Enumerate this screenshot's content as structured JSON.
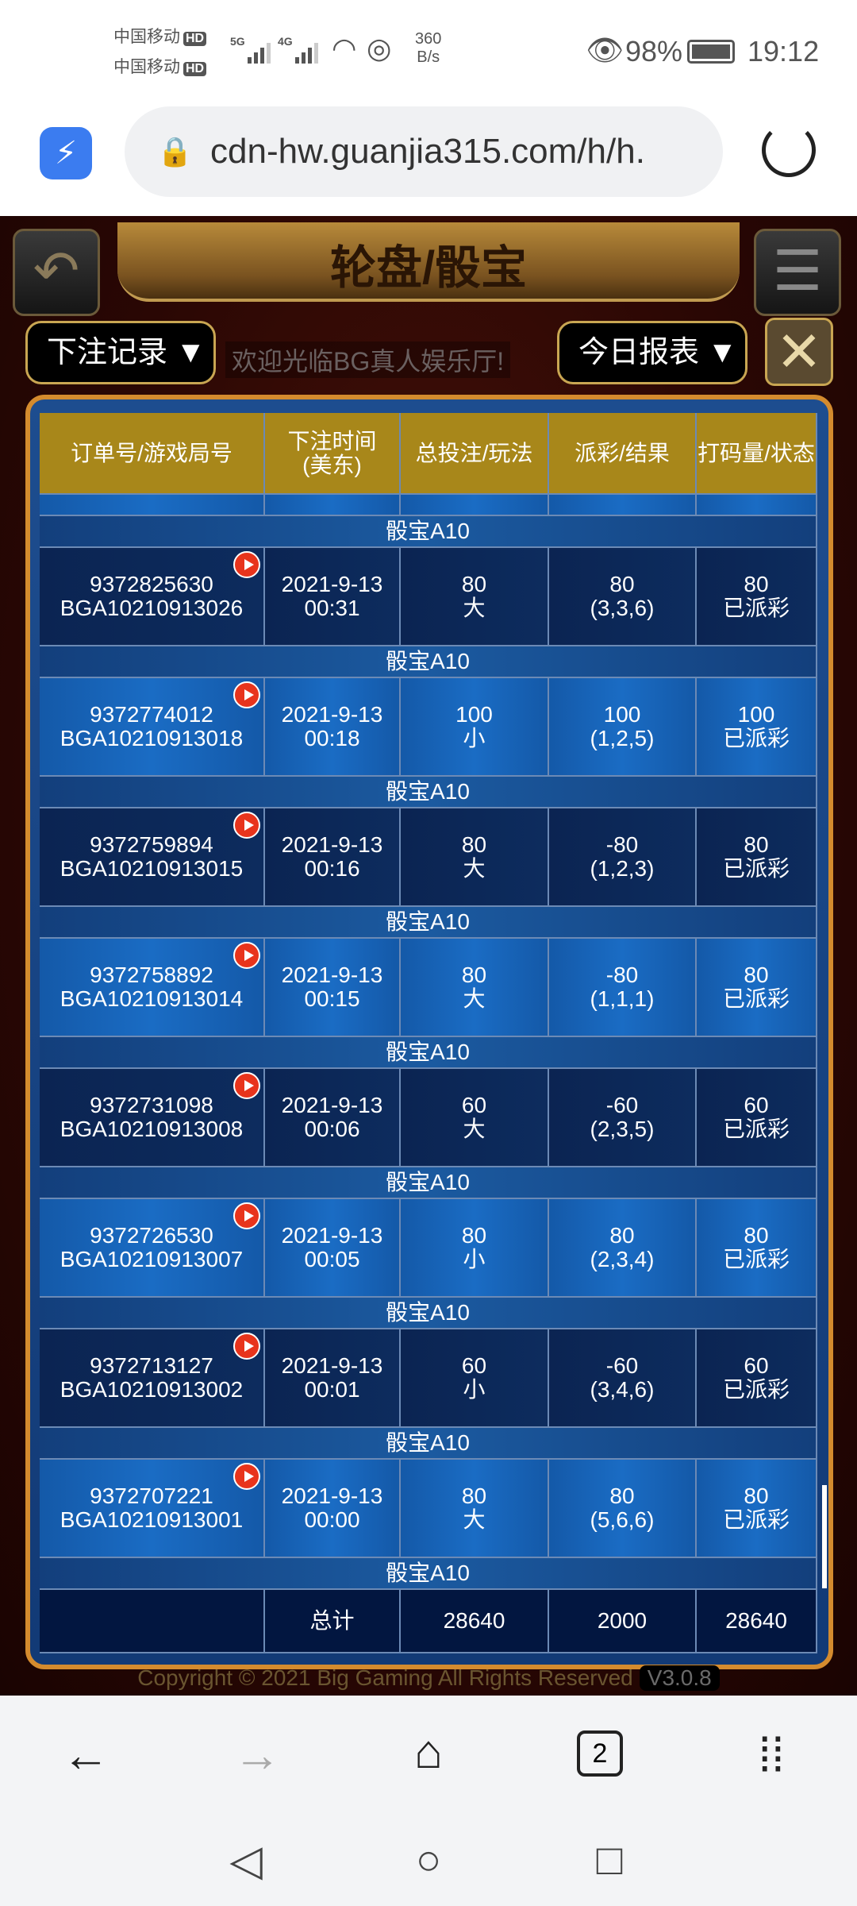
{
  "status": {
    "carrier1": "中国移动",
    "carrier2": "中国移动",
    "hd": "HD",
    "net1": "5G",
    "net2": "4G",
    "speed_value": "360",
    "speed_unit": "B/s",
    "battery": "98%",
    "time": "19:12"
  },
  "browser": {
    "url": "cdn-hw.guanjia315.com/h/h.",
    "page_count": "2"
  },
  "game": {
    "title": "轮盘/骰宝",
    "record_dropdown": "下注记录 ▼",
    "report_dropdown": "今日报表 ▼",
    "marquee": "欢迎光临BG真人娱乐厅!",
    "copyright": "Copyright © 2021 Big Gaming All Rights Reserved",
    "version": "V3.0.8"
  },
  "table": {
    "headers": [
      "订单号/游戏局号",
      "下注时间\n(美东)",
      "总投注/玩法",
      "派彩/结果",
      "打码量/状态"
    ],
    "rows": [
      {
        "group": "骰宝A10",
        "order": "9372825630",
        "round": "BGA10210913026",
        "date": "2021-9-13",
        "time": "00:31",
        "bet": "80",
        "play": "大",
        "payout": "80",
        "result": "(3,3,6)",
        "valid": "80",
        "status": "已派彩"
      },
      {
        "group": "骰宝A10",
        "order": "9372774012",
        "round": "BGA10210913018",
        "date": "2021-9-13",
        "time": "00:18",
        "bet": "100",
        "play": "小",
        "payout": "100",
        "result": "(1,2,5)",
        "valid": "100",
        "status": "已派彩"
      },
      {
        "group": "骰宝A10",
        "order": "9372759894",
        "round": "BGA10210913015",
        "date": "2021-9-13",
        "time": "00:16",
        "bet": "80",
        "play": "大",
        "payout": "-80",
        "result": "(1,2,3)",
        "valid": "80",
        "status": "已派彩"
      },
      {
        "group": "骰宝A10",
        "order": "9372758892",
        "round": "BGA10210913014",
        "date": "2021-9-13",
        "time": "00:15",
        "bet": "80",
        "play": "大",
        "payout": "-80",
        "result": "(1,1,1)",
        "valid": "80",
        "status": "已派彩"
      },
      {
        "group": "骰宝A10",
        "order": "9372731098",
        "round": "BGA10210913008",
        "date": "2021-9-13",
        "time": "00:06",
        "bet": "60",
        "play": "大",
        "payout": "-60",
        "result": "(2,3,5)",
        "valid": "60",
        "status": "已派彩"
      },
      {
        "group": "骰宝A10",
        "order": "9372726530",
        "round": "BGA10210913007",
        "date": "2021-9-13",
        "time": "00:05",
        "bet": "80",
        "play": "小",
        "payout": "80",
        "result": "(2,3,4)",
        "valid": "80",
        "status": "已派彩"
      },
      {
        "group": "骰宝A10",
        "order": "9372713127",
        "round": "BGA10210913002",
        "date": "2021-9-13",
        "time": "00:01",
        "bet": "60",
        "play": "小",
        "payout": "-60",
        "result": "(3,4,6)",
        "valid": "60",
        "status": "已派彩"
      },
      {
        "group": "骰宝A10",
        "order": "9372707221",
        "round": "BGA10210913001",
        "date": "2021-9-13",
        "time": "00:00",
        "bet": "80",
        "play": "大",
        "payout": "80",
        "result": "(5,6,6)",
        "valid": "80",
        "status": "已派彩"
      }
    ],
    "trailing_group": "骰宝A10",
    "total": {
      "label": "总计",
      "bet": "28640",
      "payout": "2000",
      "valid": "28640"
    }
  },
  "colors": {
    "header_gold": "#a8871a",
    "frame_orange": "#d48b2e",
    "play_icon_red": "#e8341c"
  }
}
